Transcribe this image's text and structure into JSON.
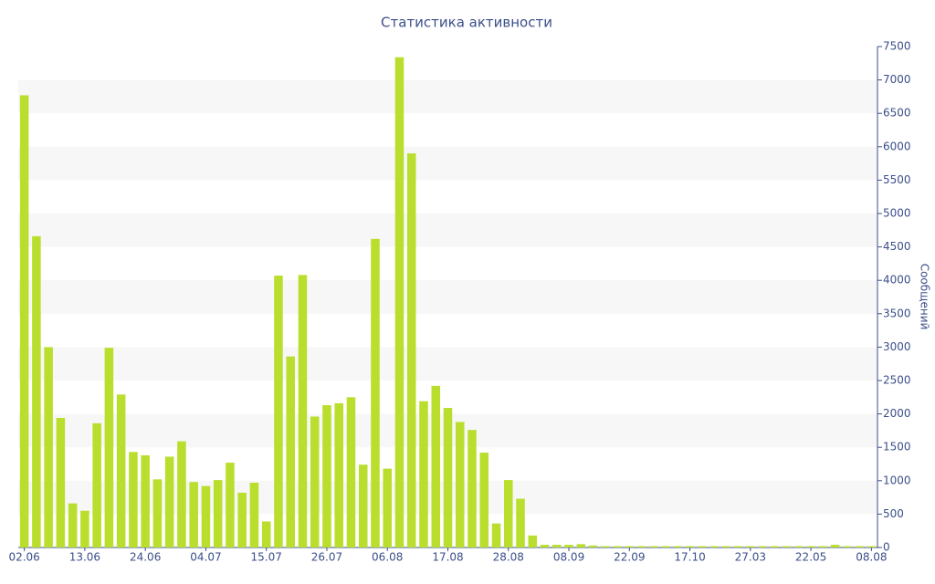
{
  "chart_data": {
    "type": "bar",
    "title": "Статистика активности",
    "y_axis_label": "Сообщений",
    "categories": [
      "02.06",
      null,
      null,
      null,
      null,
      "13.06",
      null,
      null,
      null,
      null,
      "24.06",
      null,
      null,
      null,
      null,
      "04.07",
      null,
      null,
      null,
      null,
      "15.07",
      null,
      null,
      null,
      null,
      "26.07",
      null,
      null,
      null,
      null,
      "06.08",
      null,
      null,
      null,
      null,
      "17.08",
      null,
      null,
      null,
      null,
      "28.08",
      null,
      null,
      null,
      null,
      "08.09",
      null,
      null,
      null,
      null,
      "22.09",
      null,
      null,
      null,
      null,
      "17.10",
      null,
      null,
      null,
      null,
      "27.03",
      null,
      null,
      null,
      null,
      "22.05",
      null,
      null,
      null,
      null,
      "08.08"
    ],
    "values": [
      6770,
      4660,
      3000,
      1940,
      660,
      550,
      1860,
      2990,
      2290,
      1430,
      1380,
      1020,
      1360,
      1590,
      980,
      920,
      1010,
      1270,
      820,
      970,
      390,
      4070,
      2860,
      4080,
      1960,
      2130,
      2160,
      2250,
      1240,
      4620,
      1180,
      7340,
      5900,
      2190,
      2420,
      2090,
      1880,
      1760,
      1420,
      360,
      1010,
      730,
      180,
      40,
      40,
      40,
      50,
      30,
      20,
      20,
      20,
      20,
      20,
      20,
      20,
      20,
      20,
      20,
      20,
      20,
      20,
      20,
      20,
      20,
      20,
      20,
      20,
      40,
      20,
      20,
      20
    ],
    "color": "#bade2e",
    "ylim": [
      0,
      7500
    ],
    "yticks": [
      0,
      500,
      1000,
      1500,
      2000,
      2500,
      3000,
      3500,
      4000,
      4500,
      5000,
      5500,
      6000,
      6500,
      7000,
      7500
    ],
    "y_axis_side": "right",
    "grid": "bands"
  }
}
